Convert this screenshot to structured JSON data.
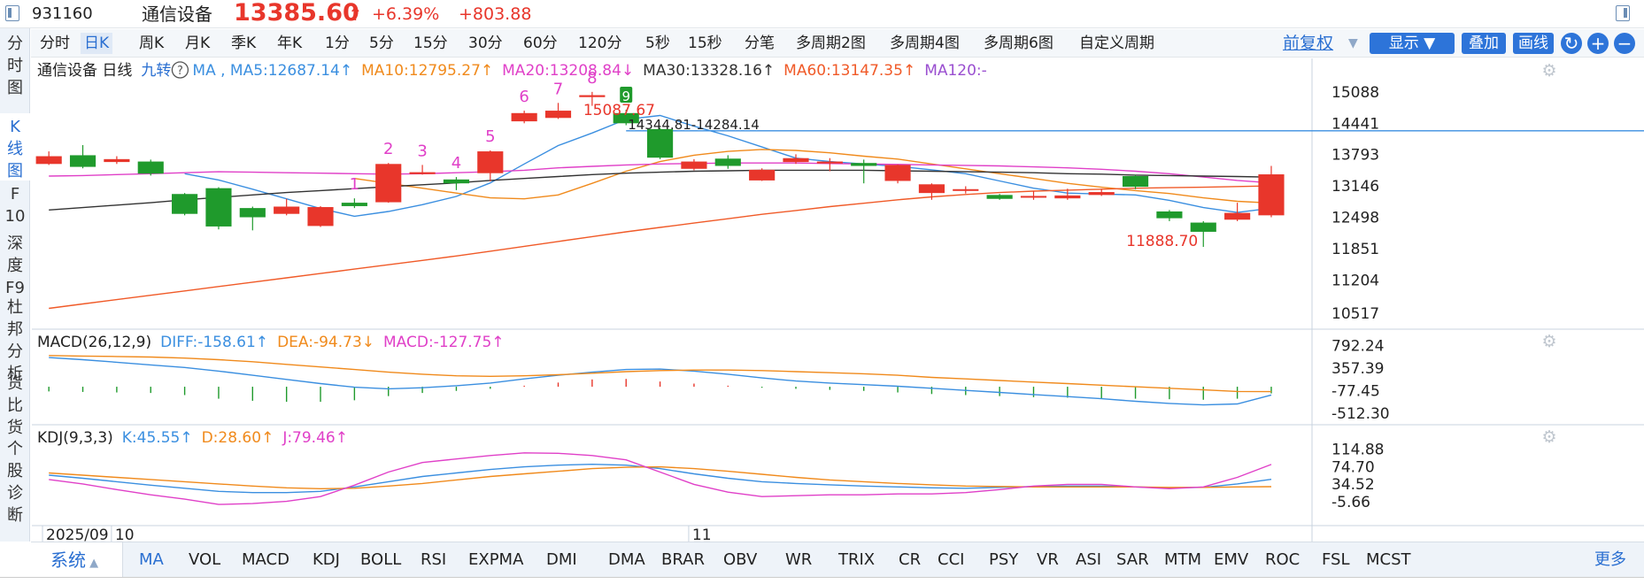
{
  "header": {
    "code": "931160",
    "name": "通信设备",
    "price": "13385.60",
    "price_arrow": "↑",
    "change_pct": "+6.39%",
    "change_abs": "+803.88"
  },
  "side_tabs": [
    {
      "label": "分时图"
    },
    {
      "label": "K线图"
    },
    {
      "label": "F10"
    },
    {
      "label": "深度F9"
    },
    {
      "label": "杜邦分析"
    },
    {
      "label": "货比货"
    },
    {
      "label": "个股诊断"
    }
  ],
  "periods": [
    "分时",
    "日K",
    "周K",
    "月K",
    "季K",
    "年K",
    "1分",
    "5分",
    "15分",
    "30分",
    "60分",
    "120分",
    "5秒",
    "15秒",
    "分笔",
    "多周期2图",
    "多周期4图",
    "多周期6图",
    "自定义周期"
  ],
  "toolbar": {
    "fq": "前复权",
    "show": "显示",
    "overlay": "叠加",
    "draw": "画线"
  },
  "main_legend": [
    {
      "text": "通信设备  日线",
      "color": "#222222"
    },
    {
      "text": "九转",
      "color": "#2a6fd1"
    },
    {
      "text": "MA , MA5:12687.14↑",
      "color": "#3b8fe0"
    },
    {
      "text": "MA10:12795.27↑",
      "color": "#f08a1c"
    },
    {
      "text": "MA20:13208.84↓",
      "color": "#e040c8"
    },
    {
      "text": "MA30:13328.16↑",
      "color": "#333333"
    },
    {
      "text": "MA60:13147.35↑",
      "color": "#f05a28"
    },
    {
      "text": "MA120:-",
      "color": "#9a4fd0"
    }
  ],
  "macd_legend": [
    {
      "text": "MACD(26,12,9)",
      "color": "#222222"
    },
    {
      "text": "DIFF:-158.61↑",
      "color": "#3b8fe0"
    },
    {
      "text": "DEA:-94.73↓",
      "color": "#f08a1c"
    },
    {
      "text": "MACD:-127.75↑",
      "color": "#e040c8"
    }
  ],
  "kdj_legend": [
    {
      "text": "KDJ(9,3,3)",
      "color": "#222222"
    },
    {
      "text": "K:45.55↑",
      "color": "#3b8fe0"
    },
    {
      "text": "D:28.60↑",
      "color": "#f08a1c"
    },
    {
      "text": "J:79.46↑",
      "color": "#e040c8"
    }
  ],
  "main_axis": [
    "15088",
    "14441",
    "13793",
    "13146",
    "12498",
    "11851",
    "11204",
    "10517"
  ],
  "macd_axis": [
    "792.24",
    "357.39",
    "-77.45",
    "-512.30"
  ],
  "kdj_axis": [
    "114.88",
    "74.70",
    "34.52",
    "-5.66"
  ],
  "date_labels": [
    {
      "text": "2025/09",
      "day": 0
    },
    {
      "text": "10",
      "day": 2
    },
    {
      "text": "11",
      "day": 19
    }
  ],
  "annotations": {
    "high": "15087.67",
    "low": "11888.70",
    "range": "14344.81-14284.14",
    "level_line": 14284.14
  },
  "nine_turn": [
    {
      "day": 9,
      "label": "1"
    },
    {
      "day": 10,
      "label": "2"
    },
    {
      "day": 11,
      "label": "3"
    },
    {
      "day": 12,
      "label": "4"
    },
    {
      "day": 13,
      "label": "5"
    },
    {
      "day": 14,
      "label": "6"
    },
    {
      "day": 15,
      "label": "7"
    },
    {
      "day": 16,
      "label": "8"
    },
    {
      "day": 17,
      "label": "9"
    }
  ],
  "indicators": [
    "MA",
    "VOL",
    "MACD",
    "KDJ",
    "BOLL",
    "RSI",
    "EXPMA",
    "DMI",
    "DMA",
    "BRAR",
    "OBV",
    "WR",
    "TRIX",
    "CR",
    "CCI",
    "PSY",
    "VR",
    "ASI",
    "SAR",
    "MTM",
    "EMV",
    "ROC",
    "FSL",
    "MCST"
  ],
  "indicator_bar": {
    "system": "系统",
    "more": "更多"
  },
  "colors": {
    "up": "#e8362b",
    "down": "#1f9a2c",
    "accent": "#2d74d9"
  },
  "chart_data": [
    {
      "type": "candlestick",
      "title": "通信设备 日线",
      "ylim": [
        10300,
        15450
      ],
      "candles": [
        {
          "o": 13600,
          "c": 13760,
          "h": 13860,
          "l": 13580
        },
        {
          "o": 13780,
          "c": 13540,
          "h": 13990,
          "l": 13510
        },
        {
          "o": 13640,
          "c": 13700,
          "h": 13760,
          "l": 13600
        },
        {
          "o": 13650,
          "c": 13400,
          "h": 13690,
          "l": 13360
        },
        {
          "o": 12980,
          "c": 12570,
          "h": 13000,
          "l": 12540
        },
        {
          "o": 13100,
          "c": 12310,
          "h": 13120,
          "l": 12250
        },
        {
          "o": 12690,
          "c": 12500,
          "h": 12720,
          "l": 12230
        },
        {
          "o": 12570,
          "c": 12720,
          "h": 12880,
          "l": 12540
        },
        {
          "o": 12320,
          "c": 12710,
          "h": 12730,
          "l": 12300
        },
        {
          "o": 12800,
          "c": 12730,
          "h": 12890,
          "l": 12690
        },
        {
          "o": 12810,
          "c": 13600,
          "h": 13620,
          "l": 12800
        },
        {
          "o": 13390,
          "c": 13430,
          "h": 13580,
          "l": 13380
        },
        {
          "o": 13280,
          "c": 13200,
          "h": 13330,
          "l": 13060
        },
        {
          "o": 13410,
          "c": 13860,
          "h": 13880,
          "l": 13240
        },
        {
          "o": 14480,
          "c": 14650,
          "h": 14700,
          "l": 14440
        },
        {
          "o": 14550,
          "c": 14700,
          "h": 14860,
          "l": 14530
        },
        {
          "o": 14980,
          "c": 15020,
          "h": 15087.67,
          "l": 14800
        },
        {
          "o": 14650,
          "c": 14440,
          "h": 14720,
          "l": 14400
        },
        {
          "o": 14320,
          "c": 13730,
          "h": 14344.81,
          "l": 13700
        },
        {
          "o": 13500,
          "c": 13650,
          "h": 13700,
          "l": 13470
        },
        {
          "o": 13710,
          "c": 13560,
          "h": 13780,
          "l": 13500
        },
        {
          "o": 13260,
          "c": 13480,
          "h": 13510,
          "l": 13250
        },
        {
          "o": 13640,
          "c": 13720,
          "h": 13800,
          "l": 13600
        },
        {
          "o": 13610,
          "c": 13650,
          "h": 13720,
          "l": 13450
        },
        {
          "o": 13620,
          "c": 13560,
          "h": 13690,
          "l": 13200
        },
        {
          "o": 13250,
          "c": 13580,
          "h": 13590,
          "l": 13200
        },
        {
          "o": 13000,
          "c": 13180,
          "h": 13200,
          "l": 12860
        },
        {
          "o": 13050,
          "c": 13080,
          "h": 13140,
          "l": 12990
        },
        {
          "o": 12960,
          "c": 12880,
          "h": 12980,
          "l": 12860
        },
        {
          "o": 12930,
          "c": 12940,
          "h": 13040,
          "l": 12860
        },
        {
          "o": 12890,
          "c": 12950,
          "h": 13090,
          "l": 12860
        },
        {
          "o": 12960,
          "c": 13020,
          "h": 13080,
          "l": 12940
        },
        {
          "o": 13350,
          "c": 13130,
          "h": 13380,
          "l": 13080
        },
        {
          "o": 12620,
          "c": 12480,
          "h": 12650,
          "l": 12420
        },
        {
          "o": 12390,
          "c": 12200,
          "h": 12420,
          "l": 11888.7
        },
        {
          "o": 12450,
          "c": 12590,
          "h": 12800,
          "l": 12420
        },
        {
          "o": 12540,
          "c": 13385.6,
          "h": 13560,
          "l": 12500
        }
      ],
      "series": [
        {
          "name": "MA5",
          "color": "#3b8fe0",
          "values": [
            null,
            null,
            null,
            null,
            13400,
            13270,
            13080,
            12880,
            12680,
            12520,
            12620,
            12760,
            12930,
            13210,
            13600,
            13980,
            14240,
            14520,
            14600,
            14380,
            14180,
            13950,
            13720,
            13650,
            13600,
            13550,
            13480,
            13400,
            13250,
            13100,
            13000,
            12980,
            12960,
            12850,
            12700,
            12600,
            12687.14
          ]
        },
        {
          "name": "MA10",
          "color": "#f08a1c",
          "values": [
            null,
            null,
            null,
            null,
            null,
            null,
            null,
            null,
            null,
            13300,
            13200,
            13100,
            13000,
            12900,
            12880,
            12960,
            13200,
            13450,
            13650,
            13780,
            13860,
            13900,
            13880,
            13830,
            13760,
            13700,
            13600,
            13500,
            13400,
            13300,
            13200,
            13120,
            13050,
            12990,
            12900,
            12830,
            12795.27
          ]
        },
        {
          "name": "MA20",
          "color": "#e040c8",
          "values": [
            13350,
            13360,
            13380,
            13400,
            13420,
            13440,
            13430,
            13420,
            13410,
            13400,
            13390,
            13400,
            13420,
            13440,
            13470,
            13520,
            13550,
            13580,
            13600,
            13610,
            13620,
            13620,
            13620,
            13610,
            13600,
            13590,
            13580,
            13570,
            13560,
            13540,
            13520,
            13490,
            13450,
            13400,
            13330,
            13260,
            13208.84
          ]
        },
        {
          "name": "MA30",
          "color": "#333333",
          "values": [
            12650,
            12700,
            12750,
            12800,
            12860,
            12910,
            12960,
            13010,
            13050,
            13090,
            13130,
            13170,
            13210,
            13260,
            13300,
            13340,
            13380,
            13410,
            13430,
            13450,
            13460,
            13470,
            13470,
            13470,
            13470,
            13460,
            13450,
            13440,
            13430,
            13420,
            13400,
            13390,
            13370,
            13360,
            13350,
            13340,
            13328.16
          ]
        },
        {
          "name": "MA60",
          "color": "#f05a28",
          "values": [
            10620,
            10710,
            10800,
            10890,
            10980,
            11070,
            11160,
            11250,
            11340,
            11430,
            11520,
            11610,
            11700,
            11800,
            11900,
            12000,
            12100,
            12200,
            12290,
            12380,
            12470,
            12560,
            12640,
            12720,
            12790,
            12860,
            12920,
            12970,
            13010,
            13040,
            13060,
            13080,
            13100,
            13110,
            13120,
            13135,
            13147.35
          ]
        }
      ]
    },
    {
      "type": "bar",
      "title": "MACD(26,12,9)",
      "ylim": [
        -560,
        800
      ],
      "values": [
        -90,
        -100,
        -110,
        -120,
        -160,
        -230,
        -270,
        -290,
        -290,
        -260,
        -180,
        -120,
        -80,
        -40,
        20,
        80,
        140,
        150,
        100,
        60,
        20,
        -20,
        -40,
        -60,
        -80,
        -110,
        -140,
        -160,
        -180,
        -200,
        -210,
        -220,
        -230,
        -240,
        -250,
        -230,
        -127.75
      ],
      "series": [
        {
          "name": "DIFF",
          "color": "#3b8fe0",
          "values": [
            560,
            520,
            470,
            420,
            370,
            300,
            220,
            140,
            60,
            -10,
            -40,
            -20,
            20,
            70,
            150,
            220,
            280,
            330,
            340,
            300,
            240,
            170,
            110,
            70,
            40,
            10,
            -30,
            -70,
            -110,
            -150,
            -190,
            -230,
            -280,
            -320,
            -350,
            -330,
            -158.61
          ]
        },
        {
          "name": "DEA",
          "color": "#f08a1c",
          "values": [
            600,
            590,
            580,
            570,
            550,
            520,
            480,
            430,
            380,
            330,
            280,
            240,
            210,
            200,
            210,
            230,
            260,
            290,
            310,
            320,
            320,
            310,
            290,
            270,
            250,
            220,
            180,
            150,
            120,
            90,
            60,
            30,
            0,
            -30,
            -60,
            -90,
            -94.73
          ]
        }
      ]
    },
    {
      "type": "line",
      "title": "KDJ(9,3,3)",
      "ylim": [
        -20,
        130
      ],
      "series": [
        {
          "name": "K",
          "color": "#3b8fe0",
          "values": [
            55,
            48,
            40,
            32,
            25,
            18,
            15,
            15,
            18,
            28,
            40,
            52,
            60,
            68,
            74,
            78,
            80,
            78,
            70,
            58,
            48,
            40,
            36,
            33,
            30,
            28,
            26,
            25,
            27,
            29,
            30,
            30,
            28,
            26,
            27,
            35,
            45.55
          ]
        },
        {
          "name": "D",
          "color": "#f08a1c",
          "values": [
            60,
            55,
            50,
            45,
            40,
            35,
            30,
            26,
            24,
            25,
            30,
            36,
            44,
            52,
            58,
            64,
            70,
            73,
            74,
            70,
            64,
            57,
            50,
            44,
            40,
            36,
            33,
            30,
            29,
            28,
            28,
            28,
            28,
            27,
            27,
            28,
            28.6
          ]
        },
        {
          "name": "J",
          "color": "#e040c8",
          "values": [
            45,
            35,
            22,
            10,
            0,
            -12,
            -10,
            -5,
            6,
            32,
            62,
            84,
            92,
            100,
            106,
            105,
            100,
            90,
            62,
            34,
            16,
            6,
            8,
            10,
            10,
            12,
            12,
            15,
            22,
            30,
            34,
            34,
            28,
            24,
            28,
            50,
            79.46
          ]
        }
      ]
    }
  ]
}
